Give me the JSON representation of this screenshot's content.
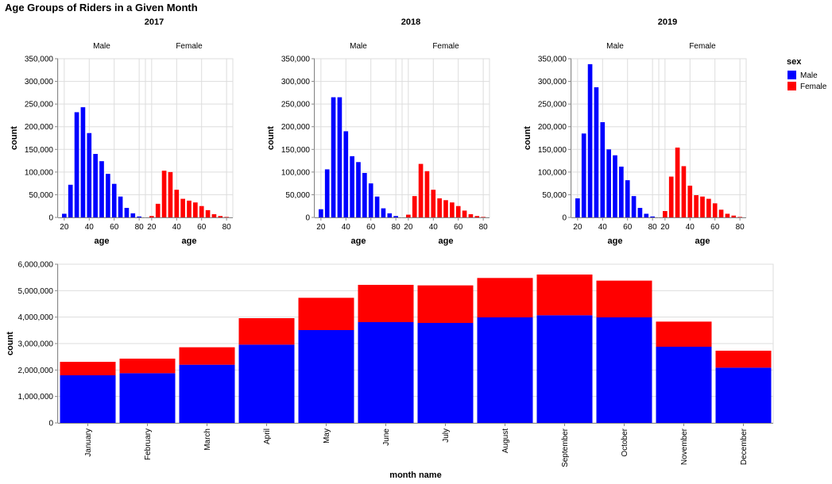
{
  "title": "Age Groups of Riders in a Given Month",
  "colors": {
    "Male": "#0000ff",
    "Female": "#ff0000"
  },
  "legend": {
    "title": "sex",
    "items": [
      "Male",
      "Female"
    ]
  },
  "chart_data": [
    {
      "type": "bar",
      "title": "2017",
      "facets": [
        "Male",
        "Female"
      ],
      "xlabel": "age",
      "ylabel": "count",
      "xlim": [
        15,
        85
      ],
      "ylim": [
        0,
        350000
      ],
      "xticks": [
        20,
        40,
        60,
        80
      ],
      "yticks": [
        0,
        50000,
        100000,
        150000,
        200000,
        250000,
        300000,
        350000
      ],
      "x": [
        20,
        25,
        30,
        35,
        40,
        45,
        50,
        55,
        60,
        65,
        70,
        75,
        80
      ],
      "series": [
        {
          "name": "Male",
          "values": [
            8000,
            72000,
            232000,
            243000,
            186000,
            140000,
            124000,
            96000,
            74000,
            46000,
            21000,
            9000,
            2000
          ]
        },
        {
          "name": "Female",
          "values": [
            3000,
            30000,
            103000,
            100000,
            61000,
            41000,
            37000,
            33000,
            25000,
            16000,
            7000,
            3000,
            1000
          ]
        }
      ]
    },
    {
      "type": "bar",
      "title": "2018",
      "facets": [
        "Male",
        "Female"
      ],
      "xlabel": "age",
      "ylabel": "count",
      "xlim": [
        15,
        85
      ],
      "ylim": [
        0,
        350000
      ],
      "xticks": [
        20,
        40,
        60,
        80
      ],
      "yticks": [
        0,
        50000,
        100000,
        150000,
        200000,
        250000,
        300000,
        350000
      ],
      "x": [
        20,
        25,
        30,
        35,
        40,
        45,
        50,
        55,
        60,
        65,
        70,
        75,
        80
      ],
      "series": [
        {
          "name": "Male",
          "values": [
            18000,
            106000,
            265000,
            265000,
            190000,
            135000,
            122000,
            98000,
            75000,
            46000,
            20000,
            9000,
            3000
          ]
        },
        {
          "name": "Female",
          "values": [
            6000,
            47000,
            118000,
            102000,
            61000,
            42000,
            38000,
            33000,
            25000,
            15000,
            7000,
            3000,
            1000
          ]
        }
      ]
    },
    {
      "type": "bar",
      "title": "2019",
      "facets": [
        "Male",
        "Female"
      ],
      "xlabel": "age",
      "ylabel": "count",
      "xlim": [
        15,
        85
      ],
      "ylim": [
        0,
        350000
      ],
      "xticks": [
        20,
        40,
        60,
        80
      ],
      "yticks": [
        0,
        50000,
        100000,
        150000,
        200000,
        250000,
        300000,
        350000
      ],
      "x": [
        20,
        25,
        30,
        35,
        40,
        45,
        50,
        55,
        60,
        65,
        70,
        75,
        80
      ],
      "series": [
        {
          "name": "Male",
          "values": [
            42000,
            185000,
            338000,
            287000,
            210000,
            150000,
            137000,
            112000,
            82000,
            47000,
            21000,
            8000,
            2000
          ]
        },
        {
          "name": "Female",
          "values": [
            14000,
            90000,
            154000,
            113000,
            70000,
            49000,
            46000,
            41000,
            31000,
            17000,
            8000,
            4000,
            1000
          ]
        }
      ]
    },
    {
      "type": "bar",
      "stacked": true,
      "xlabel": "month name",
      "ylabel": "count",
      "ylim": [
        0,
        6000000
      ],
      "yticks": [
        0,
        1000000,
        2000000,
        3000000,
        4000000,
        5000000,
        6000000
      ],
      "categories": [
        "January",
        "February",
        "March",
        "April",
        "May",
        "June",
        "July",
        "August",
        "September",
        "October",
        "November",
        "December"
      ],
      "series": [
        {
          "name": "Male",
          "values": [
            1800000,
            1880000,
            2200000,
            2960000,
            3510000,
            3810000,
            3780000,
            3990000,
            4070000,
            3990000,
            2880000,
            2090000
          ]
        },
        {
          "name": "Female",
          "values": [
            510000,
            550000,
            660000,
            1000000,
            1220000,
            1410000,
            1420000,
            1490000,
            1540000,
            1390000,
            950000,
            640000
          ]
        }
      ]
    }
  ]
}
